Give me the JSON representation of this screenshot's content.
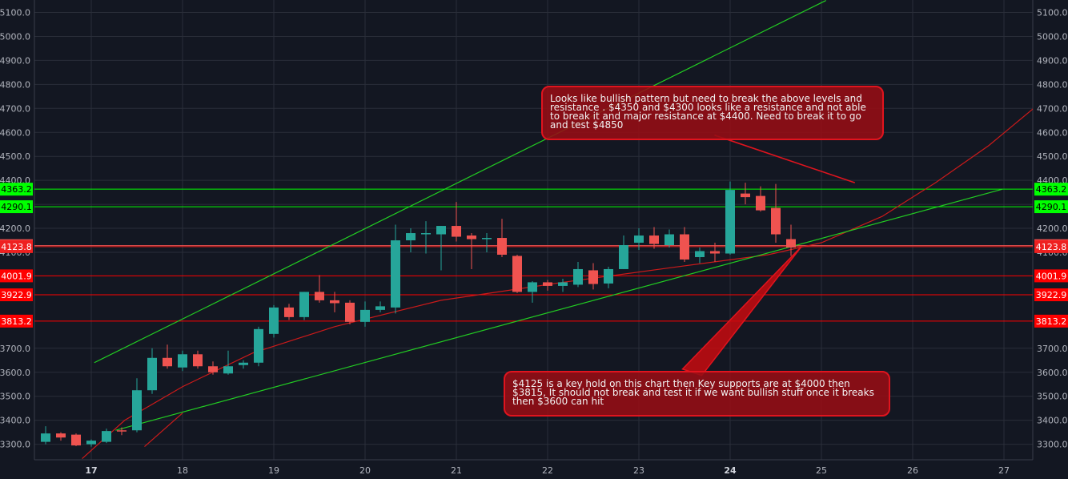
{
  "chart_data": {
    "type": "candlestick",
    "x_axis": {
      "tick_labels": [
        "17",
        "18",
        "19",
        "20",
        "21",
        "22",
        "23",
        "24",
        "25",
        "26",
        "27"
      ],
      "bold_labels": [
        "17",
        "24"
      ]
    },
    "y_axis": {
      "tick_values": [
        3300,
        3400,
        3500,
        3600,
        3700,
        4100,
        4200,
        4300,
        4400,
        4500,
        4600,
        4700,
        4800,
        4900,
        5000,
        5100
      ],
      "decimals": 1,
      "ylim": [
        3230,
        5145
      ],
      "sides": [
        "left",
        "right"
      ]
    },
    "grid": true,
    "colors": {
      "background": "#131722",
      "up": "#26a69a",
      "down": "#ef5350",
      "grid": "#2a2e39",
      "axis_text": "#b2b5be"
    },
    "candles": [
      {
        "o": 3310,
        "h": 3375,
        "l": 3300,
        "c": 3345
      },
      {
        "o": 3345,
        "h": 3350,
        "l": 3315,
        "c": 3328
      },
      {
        "o": 3340,
        "h": 3345,
        "l": 3292,
        "c": 3295
      },
      {
        "o": 3300,
        "h": 3320,
        "l": 3290,
        "c": 3315
      },
      {
        "o": 3310,
        "h": 3365,
        "l": 3305,
        "c": 3355
      },
      {
        "o": 3358,
        "h": 3370,
        "l": 3338,
        "c": 3355
      },
      {
        "o": 3358,
        "h": 3575,
        "l": 3350,
        "c": 3525
      },
      {
        "o": 3525,
        "h": 3700,
        "l": 3510,
        "c": 3660
      },
      {
        "o": 3660,
        "h": 3715,
        "l": 3615,
        "c": 3625
      },
      {
        "o": 3620,
        "h": 3690,
        "l": 3605,
        "c": 3675
      },
      {
        "o": 3675,
        "h": 3690,
        "l": 3615,
        "c": 3625
      },
      {
        "o": 3625,
        "h": 3645,
        "l": 3590,
        "c": 3600
      },
      {
        "o": 3595,
        "h": 3690,
        "l": 3590,
        "c": 3625
      },
      {
        "o": 3630,
        "h": 3650,
        "l": 3615,
        "c": 3640
      },
      {
        "o": 3640,
        "h": 3790,
        "l": 3625,
        "c": 3780
      },
      {
        "o": 3760,
        "h": 3880,
        "l": 3745,
        "c": 3870
      },
      {
        "o": 3870,
        "h": 3885,
        "l": 3818,
        "c": 3830
      },
      {
        "o": 3830,
        "h": 3935,
        "l": 3818,
        "c": 3935
      },
      {
        "o": 3935,
        "h": 4005,
        "l": 3890,
        "c": 3900
      },
      {
        "o": 3900,
        "h": 3935,
        "l": 3850,
        "c": 3888
      },
      {
        "o": 3890,
        "h": 3900,
        "l": 3800,
        "c": 3810
      },
      {
        "o": 3810,
        "h": 3895,
        "l": 3790,
        "c": 3860
      },
      {
        "o": 3860,
        "h": 3895,
        "l": 3850,
        "c": 3875
      },
      {
        "o": 3870,
        "h": 4215,
        "l": 3845,
        "c": 4150
      },
      {
        "o": 4150,
        "h": 4200,
        "l": 4100,
        "c": 4180
      },
      {
        "o": 4180,
        "h": 4230,
        "l": 4095,
        "c": 4180
      },
      {
        "o": 4175,
        "h": 4210,
        "l": 4025,
        "c": 4210
      },
      {
        "o": 4210,
        "h": 4310,
        "l": 4145,
        "c": 4165
      },
      {
        "o": 4170,
        "h": 4180,
        "l": 4030,
        "c": 4155
      },
      {
        "o": 4160,
        "h": 4180,
        "l": 4100,
        "c": 4160
      },
      {
        "o": 4160,
        "h": 4240,
        "l": 4080,
        "c": 4090
      },
      {
        "o": 4085,
        "h": 4090,
        "l": 3930,
        "c": 3935
      },
      {
        "o": 3935,
        "h": 3980,
        "l": 3890,
        "c": 3975
      },
      {
        "o": 3975,
        "h": 3985,
        "l": 3940,
        "c": 3960
      },
      {
        "o": 3960,
        "h": 3990,
        "l": 3935,
        "c": 3975
      },
      {
        "o": 3965,
        "h": 4060,
        "l": 3955,
        "c": 4030
      },
      {
        "o": 4025,
        "h": 4055,
        "l": 3945,
        "c": 3968
      },
      {
        "o": 3970,
        "h": 4040,
        "l": 3950,
        "c": 4030
      },
      {
        "o": 4030,
        "h": 4170,
        "l": 4030,
        "c": 4130
      },
      {
        "o": 4140,
        "h": 4200,
        "l": 4110,
        "c": 4170
      },
      {
        "o": 4170,
        "h": 4205,
        "l": 4115,
        "c": 4135
      },
      {
        "o": 4130,
        "h": 4195,
        "l": 4120,
        "c": 4175
      },
      {
        "o": 4175,
        "h": 4205,
        "l": 4060,
        "c": 4070
      },
      {
        "o": 4080,
        "h": 4120,
        "l": 4055,
        "c": 4105
      },
      {
        "o": 4105,
        "h": 4140,
        "l": 4060,
        "c": 4095
      },
      {
        "o": 4095,
        "h": 4395,
        "l": 4090,
        "c": 4360
      },
      {
        "o": 4345,
        "h": 4390,
        "l": 4300,
        "c": 4330
      },
      {
        "o": 4335,
        "h": 4375,
        "l": 4270,
        "c": 4275
      },
      {
        "o": 4285,
        "h": 4385,
        "l": 4140,
        "c": 4175
      },
      {
        "o": 4155,
        "h": 4215,
        "l": 4085,
        "c": 4120
      }
    ],
    "price_lines": [
      {
        "value": 4363.2,
        "label": "4363.2",
        "color": "#00ff00",
        "text_color": "#000000"
      },
      {
        "value": 4290.1,
        "label": "4290.1",
        "color": "#00ff00",
        "text_color": "#000000"
      },
      {
        "value": 4127.8,
        "label": "4127.8",
        "color": "#ef5350",
        "text_color": "#ffffff"
      },
      {
        "value": 4123.8,
        "label": "4123.8",
        "color": "#ef2020",
        "text_color": "#ffffff"
      },
      {
        "value": 4001.9,
        "label": "4001.9",
        "color": "#ff0000",
        "text_color": "#ffffff"
      },
      {
        "value": 3922.9,
        "label": "3922.9",
        "color": "#ff0000",
        "text_color": "#ffffff"
      },
      {
        "value": 3813.2,
        "label": "3813.2",
        "color": "#ff0000",
        "text_color": "#ffffff"
      }
    ],
    "trend_lines": [
      {
        "color": "#22cc22",
        "from": {
          "x": 3.2,
          "y": 3640
        },
        "to": {
          "x": 51.3,
          "y": 5150
        }
      },
      {
        "color": "#22cc22",
        "from": {
          "x": 4.6,
          "y": 3358
        },
        "to": {
          "x": 62.9,
          "y": 4363
        }
      },
      {
        "color": "#cc1a1a",
        "from": {
          "x": 6.5,
          "y": 3290
        },
        "to": {
          "x": 9.0,
          "y": 3430
        }
      }
    ],
    "curve": {
      "color": "#cc1a1a",
      "points": [
        [
          2.4,
          3240
        ],
        [
          5.2,
          3400
        ],
        [
          9.0,
          3540
        ],
        [
          13.6,
          3680
        ],
        [
          19.0,
          3790
        ],
        [
          26.0,
          3900
        ],
        [
          34.0,
          3975
        ],
        [
          41.0,
          4035
        ],
        [
          47.5,
          4090
        ],
        [
          51.0,
          4140
        ],
        [
          55.0,
          4250
        ],
        [
          58.5,
          4390
        ],
        [
          62.0,
          4545
        ],
        [
          65.8,
          4745
        ]
      ]
    },
    "annotations": [
      {
        "text": "Looks like bullish pattern but need to break the above levels and resistance . $4350 and $4300 looks like a resistance  and not able to break it and major resistance at $4400. Need to break it to go and test $4850",
        "pointer": {
          "from": [
            44.6,
            4575
          ],
          "to": [
            53.2,
            4390
          ]
        }
      },
      {
        "text": "$4125 is a key hold on this chart then Key supports are at $4000 then $3815, It should not break and test it if we want bullish stuff once it breaks then $3600 can hit",
        "pointer": {
          "from": [
            42.5,
            3600
          ],
          "to": [
            49.7,
            4125
          ]
        }
      }
    ]
  }
}
